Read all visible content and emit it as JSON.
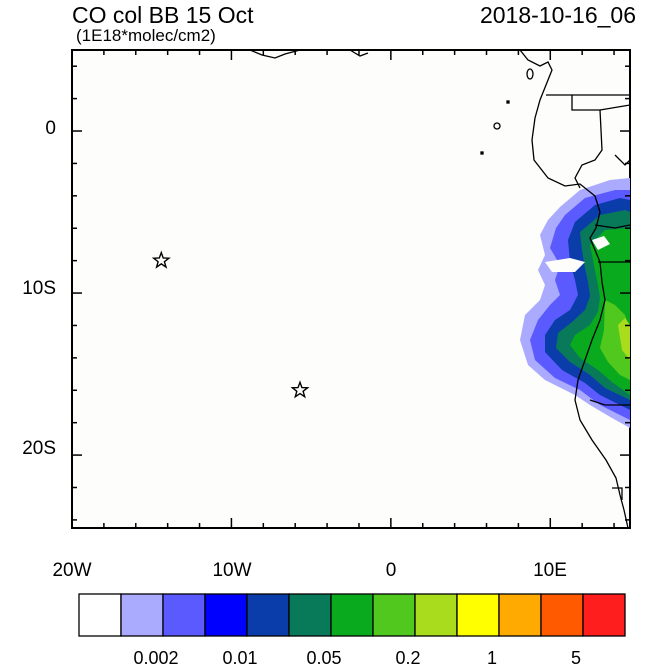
{
  "header": {
    "title": "CO col BB 15 Oct",
    "subtitle": "(1E18*molec/cm2)",
    "datetime": "2018-10-16_06"
  },
  "axes": {
    "lat_labels": [
      "0",
      "10S",
      "20S"
    ],
    "lon_labels": [
      "20W",
      "10W",
      "0",
      "10E"
    ]
  },
  "map": {
    "lon_range": [
      -20,
      15
    ],
    "lat_range": [
      -24.5,
      5
    ],
    "markers": [
      {
        "lon": -14.4,
        "lat": -8.0,
        "symbol": "star"
      },
      {
        "lon": -5.7,
        "lat": -16.0,
        "symbol": "star"
      }
    ]
  },
  "colorbar": {
    "colors": [
      "#ffffff",
      "#aaaaff",
      "#5a5aff",
      "#0000ff",
      "#0a3caa",
      "#087a5a",
      "#0aaa1e",
      "#50c81e",
      "#aadc1e",
      "#ffff00",
      "#ffaa00",
      "#ff5a00",
      "#ff1e1e"
    ],
    "tick_labels": [
      "0.002",
      "0.01",
      "0.05",
      "0.2",
      "1",
      "5"
    ]
  }
}
